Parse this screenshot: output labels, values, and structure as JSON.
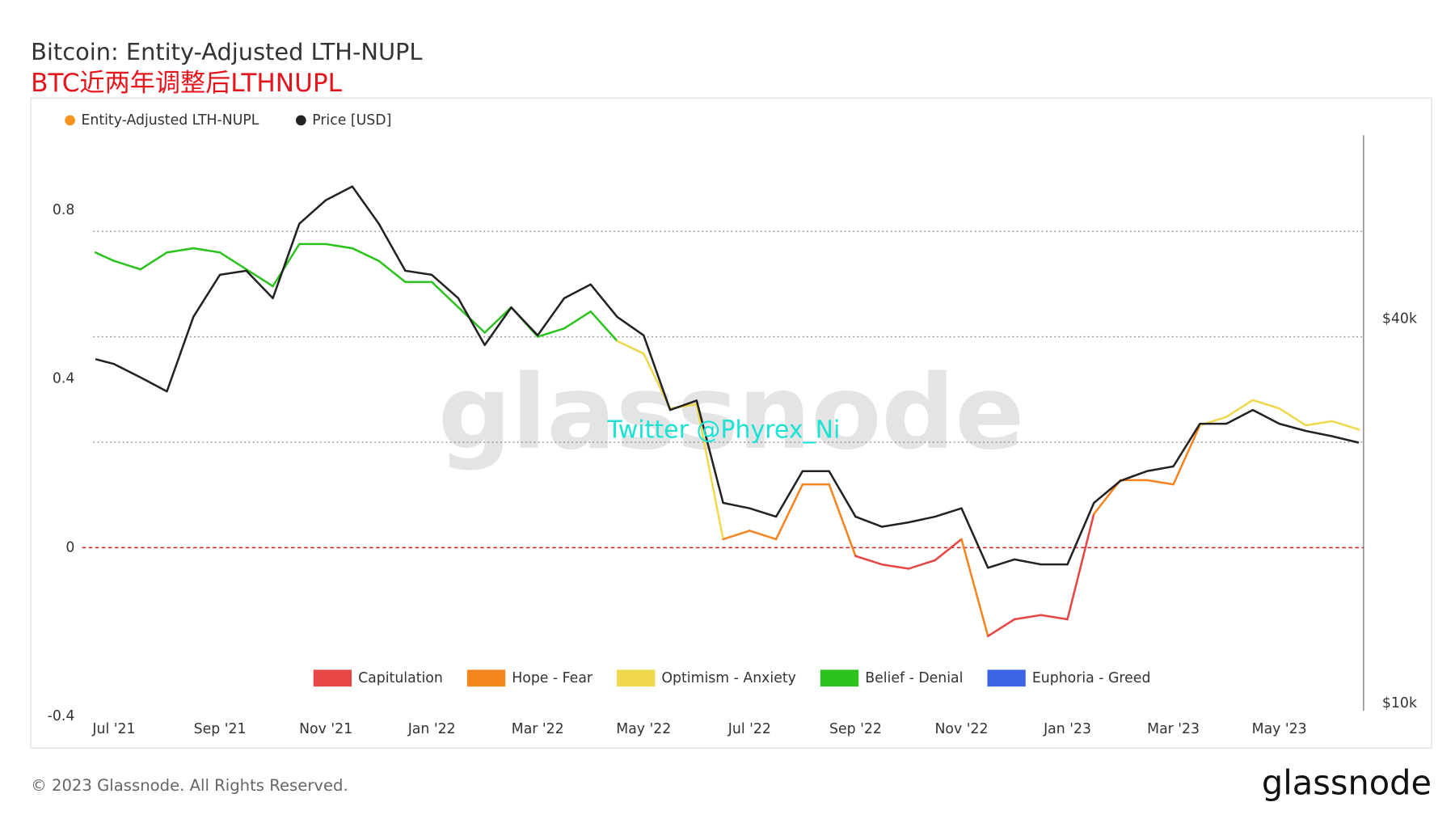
{
  "chart_data": {
    "type": "line",
    "title": "Bitcoin: Entity-Adjusted LTH-NUPL",
    "subtitle": "BTC近两年调整后LTHNUPL",
    "watermark": "glassnode",
    "annotation": "Twitter @Phyrex_Ni",
    "x": [
      -0.35,
      0,
      0.5,
      1,
      1.5,
      2,
      2.5,
      3,
      3.5,
      4,
      4.5,
      5,
      5.5,
      6,
      6.5,
      7,
      7.5,
      8,
      8.5,
      9,
      9.5,
      10,
      10.5,
      11,
      11.5,
      12,
      12.5,
      13,
      13.5,
      14,
      14.5,
      15,
      15.5,
      16,
      16.5,
      17,
      17.5,
      18,
      18.5,
      19,
      19.5,
      20,
      20.5,
      21,
      21.5,
      22,
      22.5,
      23,
      23.5
    ],
    "xlim": [
      -0.39,
      23.59
    ],
    "xticks": [
      {
        "value": 0,
        "label": "Jul '21"
      },
      {
        "value": 2,
        "label": "Sep '21"
      },
      {
        "value": 4,
        "label": "Nov '21"
      },
      {
        "value": 6,
        "label": "Jan '22"
      },
      {
        "value": 8,
        "label": "Mar '22"
      },
      {
        "value": 10,
        "label": "May '22"
      },
      {
        "value": 12,
        "label": "Jul '22"
      },
      {
        "value": 14,
        "label": "Sep '22"
      },
      {
        "value": 16,
        "label": "Nov '22"
      },
      {
        "value": 18,
        "label": "Jan '23"
      },
      {
        "value": 20,
        "label": "Mar '23"
      },
      {
        "value": 22,
        "label": "May '23"
      }
    ],
    "ylim": [
      -0.387,
      0.978
    ],
    "yticks": [
      -0.4,
      0,
      0.4,
      0.8
    ],
    "y2lim": [
      9730,
      77600
    ],
    "y2ticks": [
      {
        "value": 10000,
        "label": "$10k"
      },
      {
        "value": 40000,
        "label": "$40k"
      }
    ],
    "y2_log": true,
    "thresholds": [
      0,
      0.25,
      0.5,
      0.75
    ],
    "zones": [
      {
        "name": "Capitulation",
        "color": "#e84545"
      },
      {
        "name": "Hope - Fear",
        "color": "#f5841f"
      },
      {
        "name": "Optimism - Anxiety",
        "color": "#f0d84e"
      },
      {
        "name": "Belief - Denial",
        "color": "#2dc31f"
      },
      {
        "name": "Euphoria - Greed",
        "color": "#3d63e6"
      }
    ],
    "series": [
      {
        "name": "Entity-Adjusted LTH-NUPL",
        "color": "#f7931a",
        "zone_colored": true,
        "values": [
          0.7,
          0.68,
          0.66,
          0.7,
          0.71,
          0.7,
          0.66,
          0.62,
          0.72,
          0.72,
          0.71,
          0.68,
          0.63,
          0.63,
          0.57,
          0.51,
          0.57,
          0.5,
          0.52,
          0.56,
          0.49,
          0.46,
          0.33,
          0.34,
          0.02,
          0.04,
          0.02,
          0.15,
          0.15,
          -0.02,
          -0.04,
          -0.05,
          -0.03,
          0.02,
          -0.21,
          -0.17,
          -0.16,
          -0.17,
          0.08,
          0.16,
          0.16,
          0.15,
          0.29,
          0.31,
          0.35,
          0.33,
          0.29,
          0.3,
          0.28
        ]
      },
      {
        "name": "Price [USD]",
        "color": "#222222",
        "axis": "y2",
        "values": [
          34600,
          34000,
          32400,
          30800,
          40300,
          46900,
          47600,
          43100,
          56400,
          61400,
          64500,
          56400,
          47600,
          46900,
          43100,
          36400,
          41700,
          37700,
          43100,
          45300,
          40300,
          37700,
          28800,
          29800,
          20600,
          20200,
          19600,
          23100,
          23100,
          19600,
          18900,
          19200,
          19600,
          20200,
          16300,
          16800,
          16500,
          16500,
          20600,
          22300,
          23100,
          23500,
          27400,
          27400,
          28800,
          27400,
          26700,
          26200,
          25600
        ]
      }
    ]
  },
  "footer": {
    "copyright": "© 2023 Glassnode. All Rights Reserved.",
    "logo": "glassnode"
  }
}
